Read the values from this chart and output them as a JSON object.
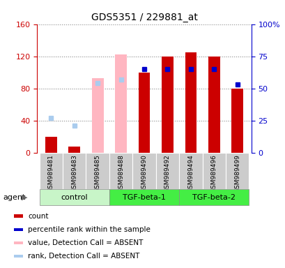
{
  "title": "GDS5351 / 229881_at",
  "samples": [
    "GSM989481",
    "GSM989483",
    "GSM989485",
    "GSM989488",
    "GSM989490",
    "GSM989492",
    "GSM989494",
    "GSM989496",
    "GSM989499"
  ],
  "count_values": [
    20,
    8,
    null,
    null,
    100,
    120,
    125,
    120,
    80
  ],
  "count_color": "#CC0000",
  "absent_value_values": [
    20,
    8,
    93,
    122,
    null,
    null,
    null,
    null,
    null
  ],
  "absent_value_color": "#FFB6C1",
  "percentile_rank_pct": [
    null,
    null,
    null,
    null,
    65,
    65,
    65,
    65,
    53
  ],
  "percentile_rank_color": "#0000CC",
  "absent_rank_pct": [
    27,
    21,
    54,
    57,
    null,
    null,
    null,
    null,
    null
  ],
  "absent_rank_color": "#AACCEE",
  "ylim_left": [
    0,
    160
  ],
  "ylim_right": [
    0,
    100
  ],
  "yticks_left": [
    0,
    40,
    80,
    120,
    160
  ],
  "ytick_labels_left": [
    "0",
    "40",
    "80",
    "120",
    "160"
  ],
  "yticks_right": [
    0,
    25,
    50,
    75,
    100
  ],
  "ytick_labels_right": [
    "0",
    "25",
    "50",
    "75",
    "100%"
  ],
  "bar_width": 0.5,
  "marker_size": 5,
  "count_color_legend": "#CC0000",
  "percentile_rank_color_legend": "#0000CC",
  "absent_value_color_legend": "#FFB6C1",
  "absent_rank_color_legend": "#AACCEE",
  "legend_labels": [
    "count",
    "percentile rank within the sample",
    "value, Detection Call = ABSENT",
    "rank, Detection Call = ABSENT"
  ],
  "group_data": [
    {
      "name": "control",
      "start": 0,
      "end": 3,
      "color": "#C8F5C8"
    },
    {
      "name": "TGF-beta-1",
      "start": 3,
      "end": 6,
      "color": "#44EE44"
    },
    {
      "name": "TGF-beta-2",
      "start": 6,
      "end": 9,
      "color": "#44EE44"
    }
  ],
  "agent_label": "agent",
  "left_axis_color": "#CC0000",
  "right_axis_color": "#0000CC"
}
